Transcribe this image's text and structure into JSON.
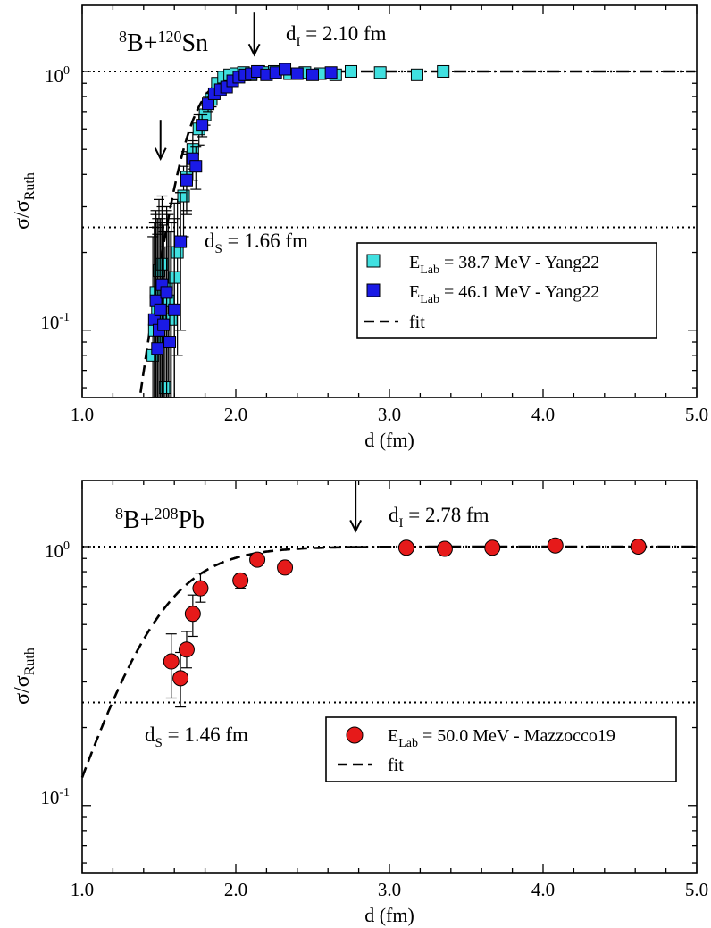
{
  "chart_data": [
    {
      "type": "scatter",
      "panel": "top",
      "reaction": {
        "base": "B+",
        "mass_a": "8",
        "mass_b": "120",
        "target": "Sn"
      },
      "xlabel": "d (fm)",
      "ylabel": {
        "main": "σ/σ",
        "sub": "Ruth"
      },
      "xlim": [
        1.0,
        5.0
      ],
      "ylim": [
        0.055,
        1.8
      ],
      "yscale": "log",
      "xticks": [
        1.0,
        2.0,
        3.0,
        4.0,
        5.0
      ],
      "xtick_labels": [
        "1.0",
        "2.0",
        "3.0",
        "4.0",
        "5.0"
      ],
      "ytick_labels": [
        {
          "value": 1.0,
          "base": "10",
          "exp": "0"
        },
        {
          "value": 0.1,
          "base": "10",
          "exp": "-1"
        }
      ],
      "reference_lines": [
        1.0,
        0.25
      ],
      "annotations": {
        "d_I": {
          "value": 2.1,
          "label_main": "d",
          "label_sub": "I",
          "label_rest": " = 2.10 fm"
        },
        "d_S": {
          "value": 1.66,
          "label_main": "d",
          "label_sub": "S",
          "label_rest": " = 1.66 fm"
        },
        "arrow_low": {
          "x": 1.51,
          "y_from": 0.65,
          "y_to": 0.46
        },
        "arrow_high": {
          "x": 2.12,
          "y_from": 1.7,
          "y_to": 1.16
        }
      },
      "legend": {
        "position": "center-right",
        "entries": [
          {
            "label_main": "E",
            "label_sub": "Lab",
            "label_rest": " = 38.7 MeV - Yang22",
            "marker": "square",
            "color": "#40e0e0"
          },
          {
            "label_main": "E",
            "label_sub": "Lab",
            "label_rest": " = 46.1 MeV - Yang22",
            "marker": "square",
            "color": "#1a1ae6"
          },
          {
            "label_main": "fit",
            "label_sub": "",
            "label_rest": "",
            "marker": "dash"
          }
        ]
      },
      "fit": {
        "d0": 1.66,
        "a": 0.1
      },
      "series": [
        {
          "name": "E_Lab = 38.7 MeV - Yang22",
          "color": "#40e0e0",
          "x": [
            1.46,
            1.47,
            1.48,
            1.49,
            1.5,
            1.51,
            1.52,
            1.53,
            1.54,
            1.55,
            1.56,
            1.58,
            1.6,
            1.62,
            1.64,
            1.66,
            1.68,
            1.72,
            1.76,
            1.8,
            1.84,
            1.88,
            1.92,
            1.96,
            2.0,
            2.05,
            2.1,
            2.15,
            2.2,
            2.25,
            2.35,
            2.45,
            2.55,
            2.65,
            2.75,
            2.94,
            3.18,
            3.35
          ],
          "y": [
            0.08,
            0.1,
            0.14,
            0.12,
            0.17,
            0.11,
            0.18,
            0.09,
            0.06,
            0.15,
            0.13,
            0.11,
            0.16,
            0.2,
            0.22,
            0.33,
            0.39,
            0.5,
            0.6,
            0.68,
            0.78,
            0.9,
            0.95,
            0.97,
            0.98,
            0.99,
            0.97,
            1.0,
            0.99,
            1.0,
            0.98,
            0.99,
            0.98,
            0.97,
            1.0,
            0.99,
            0.97,
            1.0
          ],
          "err": [
            0.15,
            0.15,
            0.15,
            0.15,
            0.15,
            0.15,
            0.15,
            0.15,
            0.15,
            0.15,
            0.15,
            0.15,
            0.15,
            0.12,
            0.12,
            0.1,
            0.1,
            0.08,
            0.08,
            0.06,
            0.05,
            0.04,
            0.03,
            0.02,
            0.02,
            0.02,
            0.02,
            0.02,
            0.02,
            0.02,
            0.02,
            0.02,
            0.02,
            0.02,
            0.02,
            0.02,
            0.02,
            0.02
          ]
        },
        {
          "name": "E_Lab = 46.1 MeV - Yang22",
          "color": "#1a1ae6",
          "x": [
            1.47,
            1.48,
            1.49,
            1.5,
            1.51,
            1.52,
            1.53,
            1.55,
            1.57,
            1.6,
            1.64,
            1.68,
            1.72,
            1.74,
            1.78,
            1.82,
            1.86,
            1.9,
            1.94,
            1.98,
            2.02,
            2.06,
            2.1,
            2.14,
            2.2,
            2.26,
            2.32,
            2.4,
            2.5,
            2.62
          ],
          "y": [
            0.11,
            0.13,
            0.085,
            0.1,
            0.12,
            0.15,
            0.105,
            0.14,
            0.09,
            0.12,
            0.22,
            0.38,
            0.46,
            0.43,
            0.62,
            0.75,
            0.82,
            0.85,
            0.87,
            0.92,
            0.95,
            0.97,
            0.98,
            1.0,
            0.97,
            0.99,
            1.02,
            0.98,
            0.97,
            0.99
          ],
          "err": [
            0.15,
            0.15,
            0.15,
            0.15,
            0.15,
            0.15,
            0.15,
            0.15,
            0.15,
            0.15,
            0.12,
            0.1,
            0.08,
            0.08,
            0.06,
            0.05,
            0.04,
            0.04,
            0.03,
            0.03,
            0.02,
            0.02,
            0.02,
            0.02,
            0.02,
            0.02,
            0.02,
            0.02,
            0.02,
            0.02
          ]
        }
      ]
    },
    {
      "type": "scatter",
      "panel": "bottom",
      "reaction": {
        "base": "B+",
        "mass_a": "8",
        "mass_b": "208",
        "target": "Pb"
      },
      "xlabel": "d (fm)",
      "ylabel": {
        "main": "σ/σ",
        "sub": "Ruth"
      },
      "xlim": [
        1.0,
        5.0
      ],
      "ylim": [
        0.055,
        1.8
      ],
      "yscale": "log",
      "xticks": [
        1.0,
        2.0,
        3.0,
        4.0,
        5.0
      ],
      "xtick_labels": [
        "1.0",
        "2.0",
        "3.0",
        "4.0",
        "5.0"
      ],
      "ytick_labels": [
        {
          "value": 1.0,
          "base": "10",
          "exp": "0"
        },
        {
          "value": 0.1,
          "base": "10",
          "exp": "-1"
        }
      ],
      "reference_lines": [
        1.0,
        0.25
      ],
      "annotations": {
        "d_I": {
          "value": 2.78,
          "label_main": "d",
          "label_sub": "I",
          "label_rest": " = 2.78 fm"
        },
        "d_S": {
          "value": 1.46,
          "label_main": "d",
          "label_sub": "S",
          "label_rest": " = 1.46 fm"
        },
        "arrow_high": {
          "x": 2.78,
          "y_from": 1.8,
          "y_to": 1.15
        }
      },
      "legend": {
        "position": "center-right",
        "entries": [
          {
            "label_main": "E",
            "label_sub": "Lab",
            "label_rest": " = 50.0 MeV - Mazzocco19",
            "marker": "circle",
            "color": "#e61a1a"
          },
          {
            "label_main": "fit",
            "label_sub": "",
            "label_rest": "",
            "marker": "dash"
          }
        ]
      },
      "fit": {
        "d0": 1.46,
        "a": 0.24
      },
      "series": [
        {
          "name": "E_Lab = 50.0 MeV - Mazzocco19",
          "color": "#e61a1a",
          "x": [
            1.58,
            1.64,
            1.68,
            1.72,
            1.77,
            2.03,
            2.14,
            2.32,
            3.11,
            3.36,
            3.67,
            4.08,
            4.62
          ],
          "y": [
            0.36,
            0.31,
            0.4,
            0.55,
            0.69,
            0.74,
            0.89,
            0.83,
            0.99,
            0.98,
            0.99,
            1.01,
            1.0
          ],
          "err_hi": [
            0.1,
            0.08,
            0.07,
            0.1,
            0.1,
            0.05,
            0.05,
            0.04,
            0.04,
            0.04,
            0.04,
            0.04,
            0.04
          ],
          "err_lo": [
            0.1,
            0.07,
            0.06,
            0.1,
            0.08,
            0.05,
            0.04,
            0.04,
            0.04,
            0.04,
            0.04,
            0.04,
            0.04
          ]
        }
      ]
    }
  ]
}
